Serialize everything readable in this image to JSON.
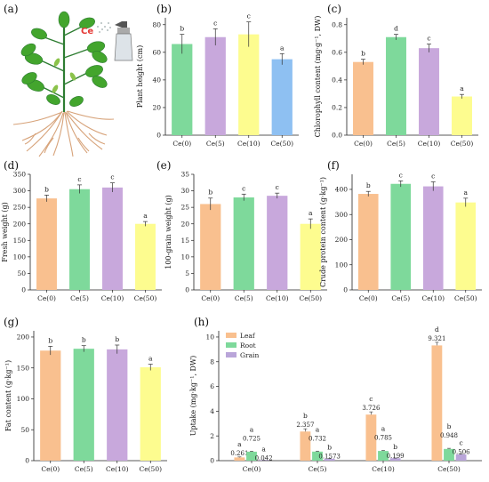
{
  "illustration": {
    "label": "(a)",
    "ce_text": "Ce"
  },
  "colors": {
    "ce0": "#f9c08f",
    "ce5": "#7ed99b",
    "ce10": "#c8a8dc",
    "ce50": "#fdfc8f",
    "ce50_plant_height": "#8ec0f2",
    "grain": "#b9a5d9",
    "leaf_plant": "#43a52d",
    "root": "#d7a37a"
  },
  "chart_data": [
    {
      "id": "b",
      "label": "(b)",
      "type": "bar",
      "categories": [
        "Ce(0)",
        "Ce(5)",
        "Ce(10)",
        "Ce(50)"
      ],
      "values": [
        66,
        71,
        73,
        55
      ],
      "errors": [
        7,
        6,
        9,
        4
      ],
      "letters": [
        "b",
        "c",
        "c",
        "a"
      ],
      "ylabel": "Plant height (cm)",
      "ylim": [
        0,
        85
      ],
      "yticks": [
        0,
        20,
        40,
        60,
        80
      ]
    },
    {
      "id": "c",
      "label": "(c)",
      "type": "bar",
      "categories": [
        "Ce(0)",
        "Ce(5)",
        "Ce(10)",
        "Ce(50)"
      ],
      "values": [
        0.53,
        0.71,
        0.63,
        0.28
      ],
      "errors": [
        0.02,
        0.02,
        0.03,
        0.015
      ],
      "letters": [
        "b",
        "d",
        "c",
        "a"
      ],
      "ylabel": "Chlorophyll content (mg·g⁻¹, DW)",
      "ylim": [
        0,
        0.85
      ],
      "yticks": [
        0.0,
        0.2,
        0.4,
        0.6,
        0.8
      ]
    },
    {
      "id": "d",
      "label": "(d)",
      "type": "bar",
      "categories": [
        "Ce(0)",
        "Ce(5)",
        "Ce(10)",
        "Ce(50)"
      ],
      "values": [
        277,
        305,
        310,
        200
      ],
      "errors": [
        10,
        13,
        14,
        7
      ],
      "letters": [
        "b",
        "c",
        "c",
        "a"
      ],
      "ylabel": "Fresh weight (g)",
      "ylim": [
        0,
        350
      ],
      "yticks": [
        0,
        50,
        100,
        150,
        200,
        250,
        300,
        350
      ]
    },
    {
      "id": "e",
      "label": "(e)",
      "type": "bar",
      "categories": [
        "Ce(0)",
        "Ce(5)",
        "Ce(10)",
        "Ce(50)"
      ],
      "values": [
        26,
        28,
        28.5,
        20
      ],
      "errors": [
        1.8,
        1.0,
        0.8,
        1.5
      ],
      "letters": [
        "b",
        "c",
        "c",
        "a"
      ],
      "ylabel": "100-grain weight (g)",
      "ylim": [
        0,
        35
      ],
      "yticks": [
        0,
        5,
        10,
        15,
        20,
        25,
        30,
        35
      ]
    },
    {
      "id": "f",
      "label": "(f)",
      "type": "bar",
      "categories": [
        "Ce(0)",
        "Ce(5)",
        "Ce(10)",
        "Ce(50)"
      ],
      "values": [
        382,
        422,
        412,
        348
      ],
      "errors": [
        10,
        12,
        18,
        17
      ],
      "letters": [
        "b",
        "c",
        "c",
        "a"
      ],
      "ylabel": "Crude protein content (g·kg⁻¹)",
      "ylim": [
        0,
        460
      ],
      "yticks": [
        0,
        100,
        200,
        300,
        400
      ]
    },
    {
      "id": "g",
      "label": "(g)",
      "type": "bar",
      "categories": [
        "Ce(0)",
        "Ce(5)",
        "Ce(10)",
        "Ce(50)"
      ],
      "values": [
        178,
        181,
        180,
        151
      ],
      "errors": [
        7,
        5,
        7,
        5
      ],
      "letters": [
        "b",
        "b",
        "b",
        "a"
      ],
      "ylabel": "Fat content (g·kg⁻¹)",
      "ylim": [
        0,
        210
      ],
      "yticks": [
        0,
        50,
        100,
        150,
        200
      ]
    },
    {
      "id": "h",
      "label": "(h)",
      "type": "bar",
      "categories": [
        "Ce(0)",
        "Ce(5)",
        "Ce(10)",
        "Ce(50)"
      ],
      "ylabel": "Uptake (mg·kg⁻¹, DW)",
      "ylim": [
        0,
        10.5
      ],
      "yticks": [
        0,
        2,
        4,
        6,
        8,
        10
      ],
      "legend_position": "top-left",
      "series": [
        {
          "name": "Leaf",
          "values": [
            0.261,
            2.357,
            3.726,
            9.321
          ],
          "errors": [
            0.04,
            0.22,
            0.22,
            0.25
          ],
          "labels": [
            "0.261",
            "2.357",
            "3.726",
            "9.321"
          ],
          "letters": [
            "a",
            "b",
            "c",
            "d"
          ]
        },
        {
          "name": "Root",
          "values": [
            0.725,
            0.732,
            0.785,
            0.948
          ],
          "errors": [
            0.04,
            0.04,
            0.04,
            0.05
          ],
          "labels": [
            "0.725",
            "0.732",
            "0.785",
            "0.948"
          ],
          "letters": [
            "a",
            "a",
            "a",
            "b"
          ]
        },
        {
          "name": "Grain",
          "values": [
            0.042,
            0.1573,
            0.199,
            0.506
          ],
          "errors": [
            0.01,
            0.01,
            0.01,
            0.03
          ],
          "labels": [
            "0.042",
            "0.1573",
            "0.199",
            "0.506"
          ],
          "letters": [
            "a",
            "b",
            "b",
            "c"
          ]
        }
      ]
    }
  ]
}
